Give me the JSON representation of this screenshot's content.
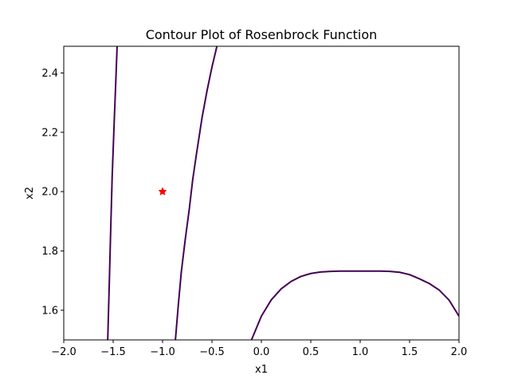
{
  "chart_data": {
    "type": "line",
    "title": "Contour Plot of Rosenbrock Function",
    "xlabel": "x1",
    "ylabel": "x2",
    "xlim": [
      -2.0,
      2.0
    ],
    "ylim": [
      1.5,
      2.49
    ],
    "x_ticks": [
      -2.0,
      -1.5,
      -1.0,
      -0.5,
      0.0,
      0.5,
      1.0,
      1.5,
      2.0
    ],
    "x_tick_labels": [
      "−2.0",
      "−1.5",
      "−1.0",
      "−0.5",
      "0.0",
      "0.5",
      "1.0",
      "1.5",
      "2.0"
    ],
    "y_ticks": [
      1.6,
      1.8,
      2.0,
      2.2,
      2.4
    ],
    "y_tick_labels": [
      "1.6",
      "1.8",
      "2.0",
      "2.2",
      "2.4"
    ],
    "grid": false,
    "line_color": "#440154",
    "marker_color": "#ff0000",
    "series": [
      {
        "points": [
          [
            -1.555,
            1.5
          ],
          [
            -1.54,
            1.68
          ],
          [
            -1.525,
            1.87
          ],
          [
            -1.51,
            2.05
          ],
          [
            -1.49,
            2.23
          ],
          [
            -1.47,
            2.4
          ],
          [
            -1.46,
            2.49
          ]
        ]
      },
      {
        "points": [
          [
            -0.87,
            1.5
          ],
          [
            -0.84,
            1.62
          ],
          [
            -0.81,
            1.73
          ],
          [
            -0.77,
            1.84
          ],
          [
            -0.73,
            1.94
          ],
          [
            -0.695,
            2.04
          ],
          [
            -0.66,
            2.12
          ],
          [
            -0.6,
            2.25
          ],
          [
            -0.55,
            2.34
          ],
          [
            -0.5,
            2.42
          ],
          [
            -0.45,
            2.49
          ]
        ]
      },
      {
        "points": [
          [
            -0.1,
            1.5
          ],
          [
            -0.05,
            1.54
          ],
          [
            0.0,
            1.58
          ],
          [
            0.1,
            1.635
          ],
          [
            0.2,
            1.672
          ],
          [
            0.3,
            1.697
          ],
          [
            0.4,
            1.714
          ],
          [
            0.5,
            1.724
          ],
          [
            0.6,
            1.729
          ],
          [
            0.7,
            1.731
          ],
          [
            0.8,
            1.732
          ],
          [
            1.0,
            1.732
          ],
          [
            1.2,
            1.732
          ],
          [
            1.3,
            1.731
          ],
          [
            1.4,
            1.728
          ],
          [
            1.5,
            1.72
          ],
          [
            1.6,
            1.706
          ],
          [
            1.7,
            1.69
          ],
          [
            1.8,
            1.668
          ],
          [
            1.9,
            1.634
          ],
          [
            2.0,
            1.58
          ]
        ]
      }
    ],
    "points": [
      {
        "x": -1.0,
        "y": 2.0,
        "marker": "star",
        "color": "#ff0000"
      }
    ]
  }
}
